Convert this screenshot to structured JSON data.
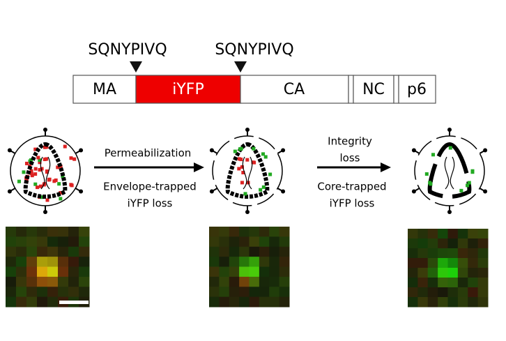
{
  "gene": {
    "cleavage_sites": [
      "SQNYPIVQ",
      "SQNYPIVQ"
    ],
    "segments": [
      "MA",
      "iYFP",
      "CA",
      "NC",
      "p6"
    ]
  },
  "steps": [
    {
      "above": [
        "Permeabilization"
      ],
      "below": [
        "Envelope-trapped",
        "iYFP loss"
      ]
    },
    {
      "above": [
        "Integrity",
        "loss"
      ],
      "below": [
        "Core-trapped",
        "iYFP loss"
      ]
    }
  ]
}
